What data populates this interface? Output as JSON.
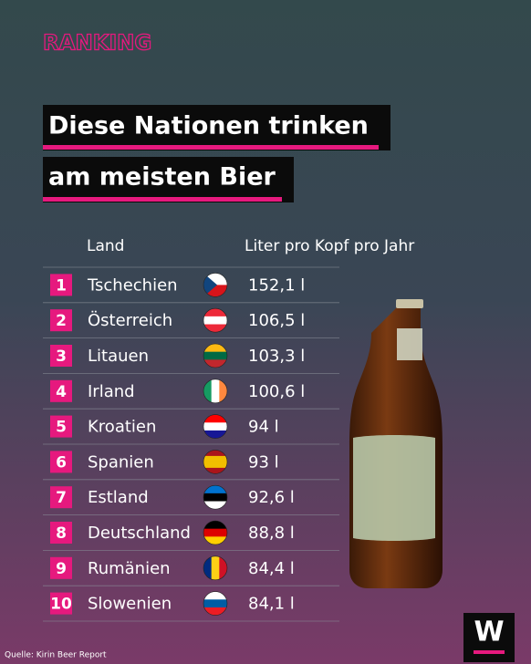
{
  "label": "RANKING",
  "title": [
    "Diese Nationen trinken",
    "am meisten Bier"
  ],
  "table": {
    "columns": [
      "Land",
      "Liter pro Kopf pro Jahr"
    ],
    "rows": [
      [
        "1",
        "Tschechien",
        "152,1 l"
      ],
      [
        "2",
        "Österreich",
        "106,5 l"
      ],
      [
        "3",
        "Litauen",
        "103,3 l"
      ],
      [
        "4",
        "Irland",
        "100,6 l"
      ],
      [
        "5",
        "Kroatien",
        "94 l"
      ],
      [
        "6",
        "Spanien",
        "93 l"
      ],
      [
        "7",
        "Estland",
        "92,6 l"
      ],
      [
        "8",
        "Deutschland",
        "88,8 l"
      ],
      [
        "9",
        "Rumänien",
        "84,4 l"
      ],
      [
        "10",
        "Slowenien",
        "84,1 l"
      ]
    ]
  },
  "source": "Quelle: Kirin Beer Report",
  "logo": "W"
}
